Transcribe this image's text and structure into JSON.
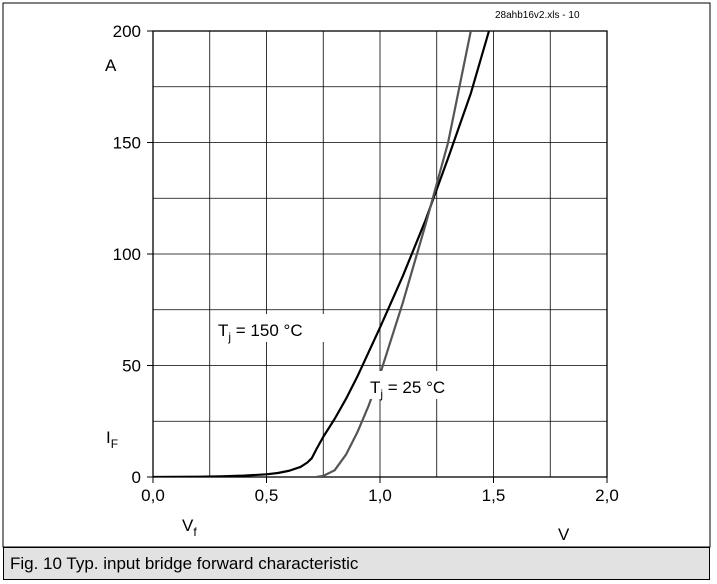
{
  "caption": "Fig. 10 Typ. input bridge forward characteristic",
  "file_ref": "28ahb16v2.xls - 10",
  "chart_data": {
    "type": "line",
    "title": "",
    "xlabel": "V",
    "ylabel": "A",
    "x_symbol": "V",
    "x_symbol_sub": "f",
    "y_symbol": "I",
    "y_symbol_sub": "F",
    "xlim": [
      0,
      2.0
    ],
    "ylim": [
      0,
      200
    ],
    "x_ticks": [
      "0,0",
      "0,5",
      "1,0",
      "1,5",
      "2,0"
    ],
    "x_tick_values": [
      0,
      0.5,
      1.0,
      1.5,
      2.0
    ],
    "y_ticks": [
      "0",
      "50",
      "100",
      "150",
      "200"
    ],
    "y_tick_values": [
      0,
      50,
      100,
      150,
      200
    ],
    "grid": true,
    "series": [
      {
        "name": "T_j = 150 °C",
        "label_main": "T",
        "label_sub": "j",
        "label_rest": " = 150 °C",
        "color": "#000000",
        "x": [
          0.0,
          0.2,
          0.3,
          0.4,
          0.5,
          0.55,
          0.6,
          0.65,
          0.68,
          0.7,
          0.72,
          0.75,
          0.8,
          0.85,
          0.9,
          1.0,
          1.1,
          1.2,
          1.3,
          1.4,
          1.48
        ],
        "y": [
          0,
          0.1,
          0.3,
          0.6,
          1.2,
          1.8,
          2.8,
          4.5,
          6.5,
          8.5,
          12.5,
          18,
          26,
          35,
          45,
          67,
          90,
          115,
          143,
          172,
          200
        ]
      },
      {
        "name": "T_j = 25 °C",
        "label_main": "T",
        "label_sub": "j",
        "label_rest": " = 25 °C",
        "color": "#555555",
        "x": [
          0.72,
          0.75,
          0.8,
          0.85,
          0.9,
          0.95,
          1.0,
          1.1,
          1.2,
          1.3,
          1.35,
          1.4
        ],
        "y": [
          0,
          0.5,
          3,
          10,
          20,
          32,
          46,
          78,
          113,
          150,
          175,
          200
        ]
      }
    ],
    "annotations": [
      {
        "series": 0,
        "x_data": 0.58,
        "y_data": 63
      },
      {
        "series": 1,
        "x_data": 1.05,
        "y_data": 38
      }
    ]
  }
}
